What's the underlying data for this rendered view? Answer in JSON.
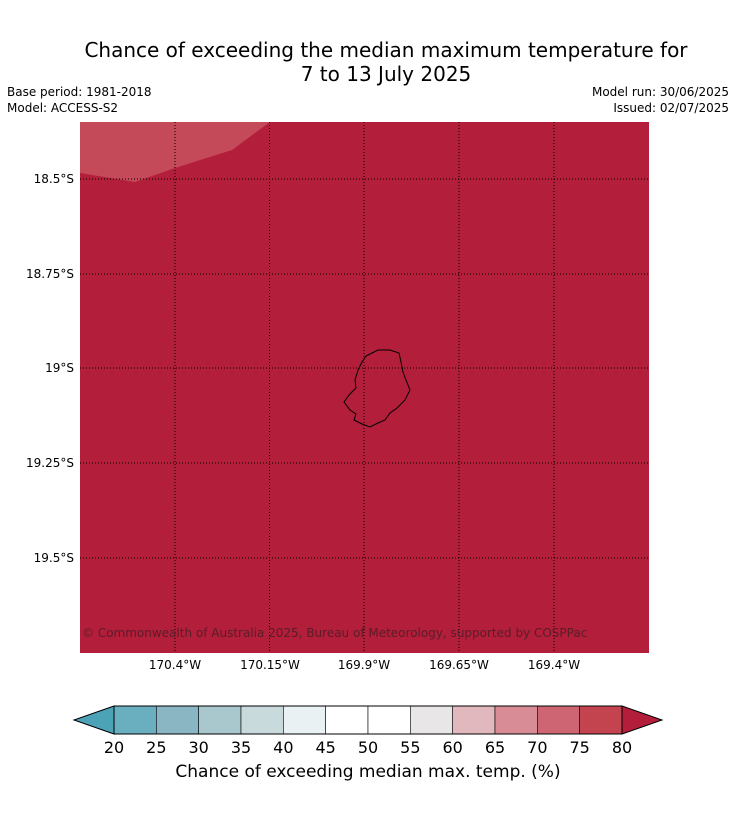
{
  "header": {
    "title": "Chance of exceeding the median maximum temperature for\n7 to 13 July 2025",
    "base_period": "Base period: 1981-2018",
    "model": "Model: ACCESS-S2",
    "model_run": "Model run: 30/06/2025",
    "issued": "Issued: 02/07/2025"
  },
  "map": {
    "fill_color": "#b31e3a",
    "corner_fill_color": "#c44a5a",
    "lat_ticks": [
      "18.5°S",
      "18.75°S",
      "19°S",
      "19.25°S",
      "19.5°S"
    ],
    "lon_ticks": [
      "170.4°W",
      "170.15°W",
      "169.9°W",
      "169.65°W",
      "169.4°W"
    ],
    "copyright": "© Commonwealth of Australia 2025, Bureau of Meteorology, supported by COSPPac"
  },
  "colorbar": {
    "ticks": [
      "20",
      "25",
      "30",
      "35",
      "40",
      "45",
      "50",
      "55",
      "60",
      "65",
      "70",
      "75",
      "80"
    ],
    "low_extend_color": "#4ba3b5",
    "high_extend_color": "#b31e3a",
    "colors": [
      "#6aafc0",
      "#8ab6c3",
      "#a9c8cd",
      "#c9dadd",
      "#e9f1f3",
      "#ffffff",
      "#ffffff",
      "#e8e6e7",
      "#e1b8bd",
      "#d78c96",
      "#cd6672",
      "#c3434f"
    ],
    "label": "Chance of exceeding median max. temp. (%)"
  }
}
